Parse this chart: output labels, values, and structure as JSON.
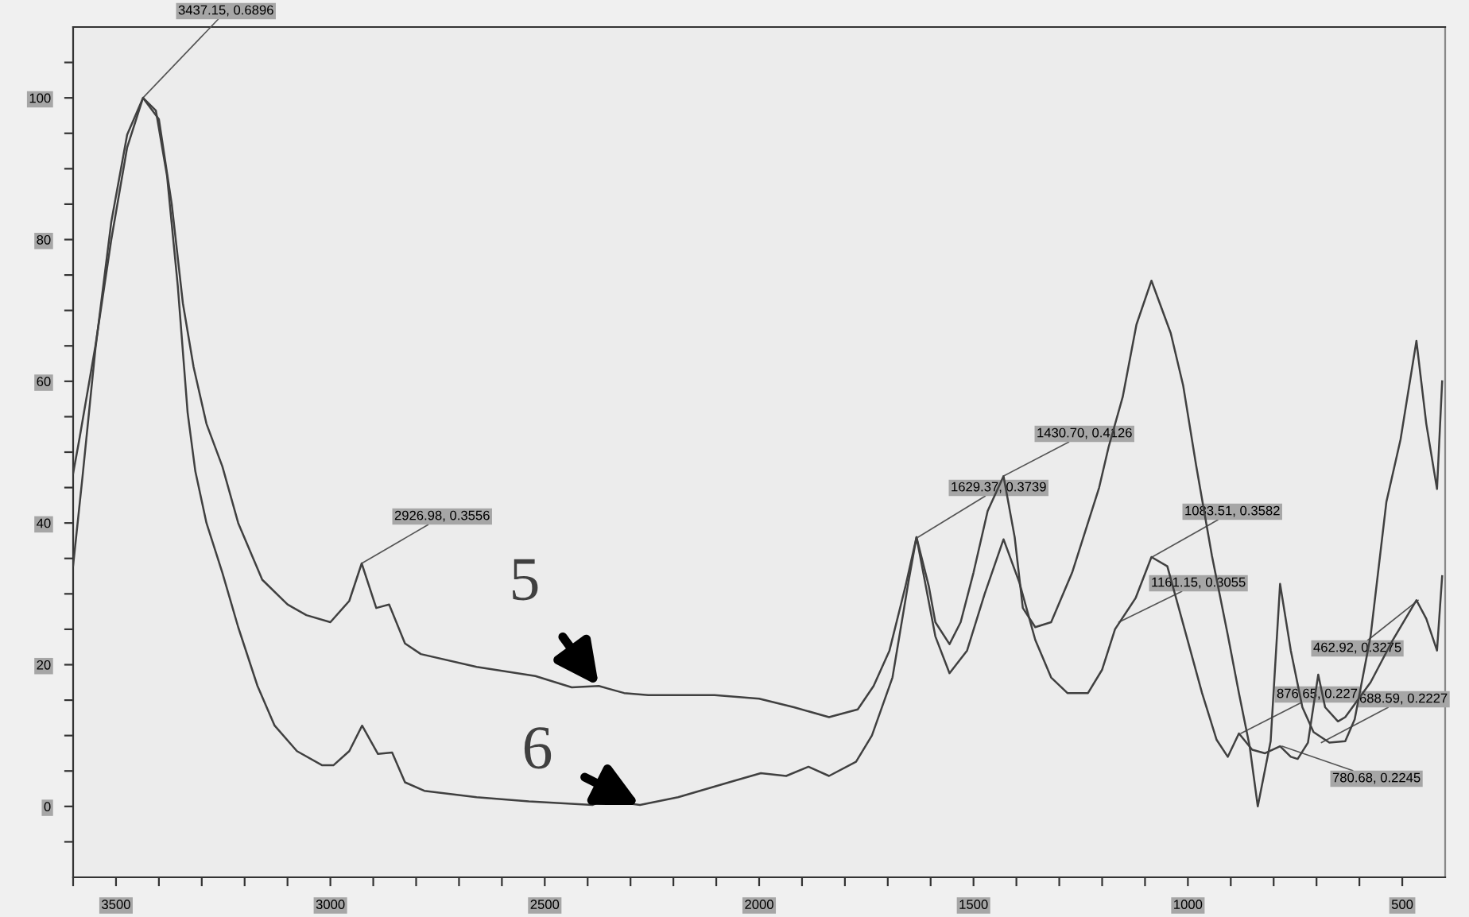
{
  "chart_data": {
    "type": "line",
    "xlim": [
      3600,
      400
    ],
    "ylim": [
      -10,
      110
    ],
    "xticks": [
      {
        "value": 3600,
        "label": null
      },
      3500,
      {
        "value": 3400,
        "label": null
      },
      {
        "value": 3300,
        "label": null
      },
      {
        "value": 3200,
        "label": null
      },
      {
        "value": 3100,
        "label": null
      },
      3000,
      {
        "value": 2900,
        "label": null
      },
      {
        "value": 2800,
        "label": null
      },
      {
        "value": 2700,
        "label": null
      },
      {
        "value": 2600,
        "label": null
      },
      2500,
      {
        "value": 2400,
        "label": null
      },
      {
        "value": 2300,
        "label": null
      },
      {
        "value": 2200,
        "label": null
      },
      {
        "value": 2100,
        "label": null
      },
      2000,
      {
        "value": 1900,
        "label": null
      },
      {
        "value": 1800,
        "label": null
      },
      {
        "value": 1700,
        "label": null
      },
      {
        "value": 1600,
        "label": null
      },
      1500,
      {
        "value": 1400,
        "label": null
      },
      {
        "value": 1300,
        "label": null
      },
      {
        "value": 1200,
        "label": null
      },
      {
        "value": 1100,
        "label": null
      },
      1000,
      {
        "value": 900,
        "label": null
      },
      {
        "value": 800,
        "label": null
      },
      {
        "value": 700,
        "label": null
      },
      {
        "value": 600,
        "label": null
      },
      500
    ],
    "yticks": [
      {
        "value": -5,
        "label": null
      },
      0,
      {
        "value": 5,
        "label": null
      },
      {
        "value": 10,
        "label": null
      },
      {
        "value": 15,
        "label": null
      },
      20,
      {
        "value": 25,
        "label": null
      },
      {
        "value": 30,
        "label": null
      },
      {
        "value": 35,
        "label": null
      },
      40,
      {
        "value": 45,
        "label": null
      },
      {
        "value": 50,
        "label": null
      },
      {
        "value": 55,
        "label": null
      },
      60,
      {
        "value": 65,
        "label": null
      },
      {
        "value": 70,
        "label": null
      },
      {
        "value": 75,
        "label": null
      },
      80,
      {
        "value": 85,
        "label": null
      },
      {
        "value": 90,
        "label": null
      },
      {
        "value": 95,
        "label": null
      },
      100,
      {
        "value": 105,
        "label": null
      }
    ],
    "grid": false,
    "legend": false,
    "marker": "none",
    "line_style": "solid",
    "series": [
      {
        "name": "5",
        "color": "#404040",
        "x": [
          3600,
          3585,
          3548,
          3511,
          3474,
          3437,
          3400,
          3370,
          3344,
          3319,
          3289,
          3252,
          3215,
          3159,
          3100,
          3056,
          3000,
          2956,
          2927,
          2893,
          2863,
          2826,
          2789,
          2659,
          2522,
          2437,
          2374,
          2315,
          2259,
          2104,
          2000,
          1919,
          1837,
          1770,
          1733,
          1696,
          1659,
          1633,
          1604,
          1589,
          1556,
          1530,
          1500,
          1467,
          1430,
          1404,
          1385,
          1356,
          1319,
          1270,
          1207,
          1185,
          1152,
          1120,
          1085,
          1040,
          1011,
          981,
          944,
          907,
          881,
          856,
          837,
          807,
          785,
          760,
          733,
          707,
          670,
          633,
          611,
          574,
          537,
          504,
          467,
          444,
          419,
          407
        ],
        "values": [
          47,
          52,
          65,
          80,
          93,
          100,
          97,
          85,
          71,
          62,
          54,
          48,
          40,
          32,
          28.5,
          27,
          26,
          29,
          34.3,
          28,
          28.5,
          23,
          21.5,
          19.7,
          18.4,
          16.8,
          17,
          16,
          15.7,
          15.7,
          15.2,
          14,
          12.6,
          13.7,
          17,
          22,
          31,
          38,
          31,
          26,
          22.9,
          26,
          33,
          41.7,
          46.6,
          38,
          28,
          25.3,
          26,
          33,
          45,
          50.7,
          57.8,
          68,
          74.2,
          66.8,
          59.4,
          48.2,
          35.4,
          24.2,
          16,
          8.5,
          0,
          9.2,
          31.4,
          22,
          14,
          10.5,
          9,
          9.2,
          12.3,
          24,
          43,
          51.8,
          65.7,
          54,
          44.8,
          60
        ]
      },
      {
        "name": "6",
        "color": "#404040",
        "x": [
          3600,
          3578,
          3548,
          3511,
          3474,
          3437,
          3407,
          3381,
          3356,
          3333,
          3315,
          3289,
          3252,
          3215,
          3170,
          3130,
          3078,
          3019,
          2993,
          2956,
          2926,
          2889,
          2856,
          2826,
          2781,
          2659,
          2537,
          2389,
          2363,
          2278,
          2189,
          2059,
          1996,
          1937,
          1885,
          1837,
          1774,
          1737,
          1689,
          1652,
          1633,
          1589,
          1556,
          1515,
          1474,
          1430,
          1393,
          1356,
          1319,
          1281,
          1233,
          1200,
          1170,
          1122,
          1085,
          1048,
          1004,
          967,
          933,
          907,
          881,
          850,
          820,
          785,
          760,
          744,
          720,
          696,
          680,
          650,
          633,
          574,
          522,
          467,
          444,
          419,
          407
        ],
        "values": [
          34,
          46.6,
          64.6,
          82.5,
          94.8,
          100,
          98.2,
          89,
          73.5,
          55.6,
          47.3,
          40,
          33,
          25.3,
          17,
          11.4,
          7.8,
          5.8,
          5.8,
          7.8,
          11.4,
          7.4,
          7.6,
          3.4,
          2.2,
          1.3,
          0.7,
          0.2,
          0.9,
          0.2,
          1.3,
          3.6,
          4.7,
          4.3,
          5.6,
          4.3,
          6.3,
          10,
          18.2,
          31.6,
          38,
          24,
          18.8,
          22,
          30,
          37.7,
          31.6,
          23.5,
          18.2,
          16,
          16,
          19.3,
          25,
          29.4,
          35.2,
          33.9,
          24.2,
          16,
          9.4,
          7,
          10.3,
          8,
          7.5,
          8.5,
          7,
          6.7,
          9,
          18.6,
          14,
          12,
          12.6,
          17.5,
          23.5,
          29.1,
          26.5,
          22,
          32.5
        ]
      }
    ],
    "annotations": [
      {
        "text": "3437.15, 0.6896",
        "x": 3437.15,
        "y": 100
      },
      {
        "text": "2926.98, 0.3556",
        "x": 2926.98,
        "y": 34.3
      },
      {
        "text": "1629.37, 0.3739",
        "x": 1629.37,
        "y": 38
      },
      {
        "text": "1430.70, 0.4126",
        "x": 1430.7,
        "y": 46.6
      },
      {
        "text": "1083.51, 0.3582",
        "x": 1083.51,
        "y": 35.2
      },
      {
        "text": "1161.15, 0.3055",
        "x": 1161.15,
        "y": 26
      },
      {
        "text": "876.65, 0.227",
        "x": 876.65,
        "y": 10.3
      },
      {
        "text": "780.68, 0.2245",
        "x": 780.68,
        "y": 8.5
      },
      {
        "text": "688.59, 0.2227",
        "x": 688.59,
        "y": 9
      },
      {
        "text": "462.92, 0.3275",
        "x": 462.92,
        "y": 29.1
      }
    ]
  }
}
